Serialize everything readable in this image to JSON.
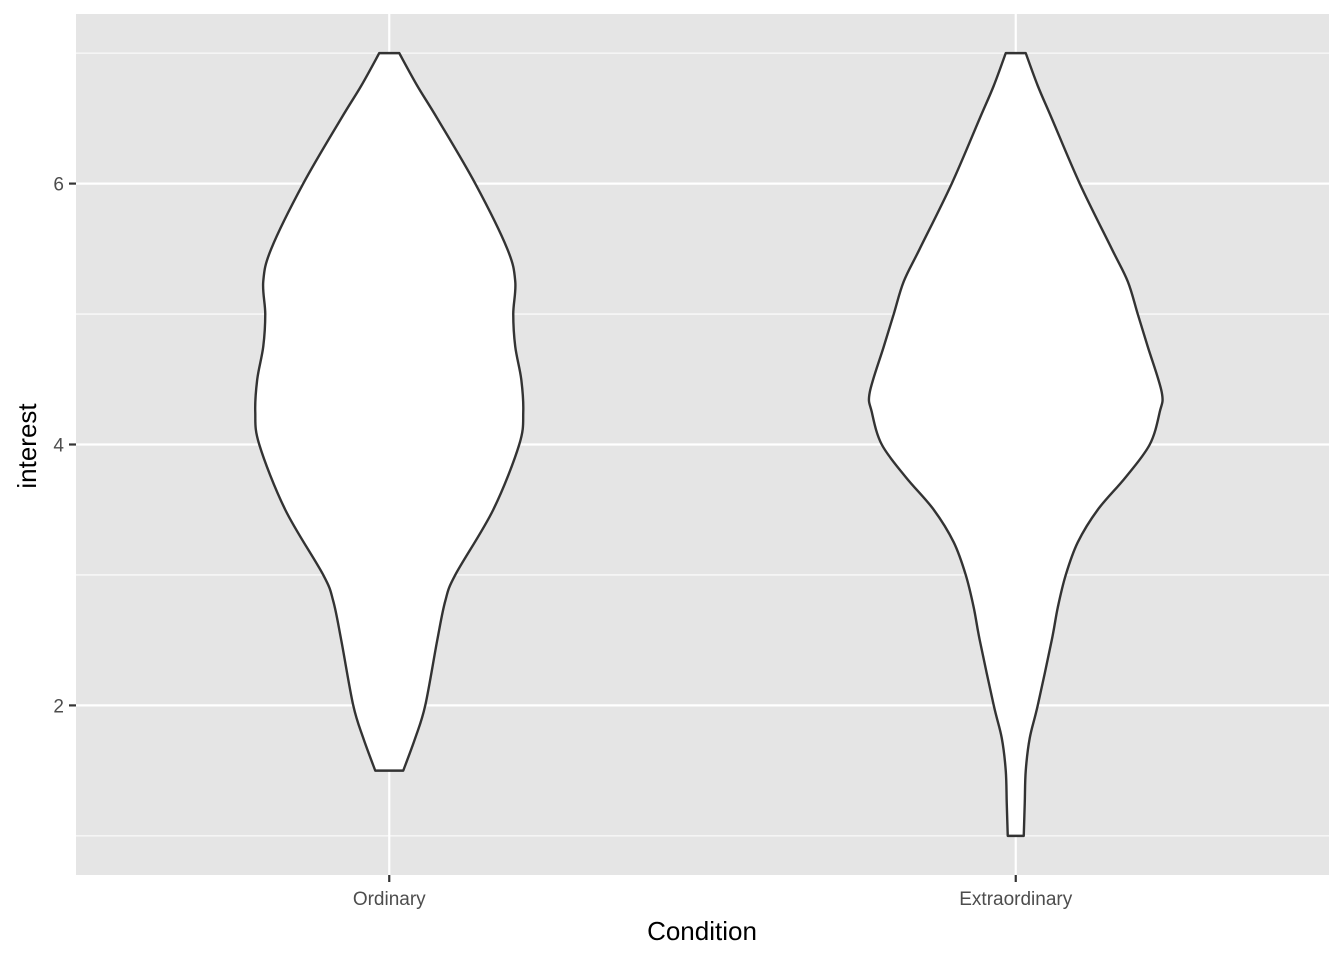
{
  "chart_data": {
    "type": "violin",
    "title": "",
    "xlabel": "Condition",
    "ylabel": "interest",
    "categories": [
      "Ordinary",
      "Extraordinary"
    ],
    "ylim": [
      0.7,
      7.3
    ],
    "y_ticks": [
      2,
      4,
      6
    ],
    "y_tick_labels": [
      "2",
      "4",
      "6"
    ],
    "y_minor_gridlines": [
      1,
      3,
      5,
      7
    ],
    "grid": true,
    "legend": "none",
    "colors": {
      "panel_background": "#e5e5e5",
      "gridline": "#ffffff",
      "violin_fill": "#ffffff",
      "violin_outline": "#333333",
      "tick": "#333333"
    },
    "series": [
      {
        "category": "Ordinary",
        "min": 1.5,
        "max": 7.0,
        "density_profile": [
          [
            1.5,
            0.07
          ],
          [
            1.75,
            0.13
          ],
          [
            2.0,
            0.18
          ],
          [
            2.5,
            0.24
          ],
          [
            2.8,
            0.28
          ],
          [
            3.0,
            0.33
          ],
          [
            3.5,
            0.52
          ],
          [
            4.0,
            0.65
          ],
          [
            4.25,
            0.67
          ],
          [
            4.5,
            0.66
          ],
          [
            4.75,
            0.63
          ],
          [
            5.0,
            0.62
          ],
          [
            5.25,
            0.63
          ],
          [
            5.5,
            0.59
          ],
          [
            6.0,
            0.43
          ],
          [
            6.5,
            0.24
          ],
          [
            6.75,
            0.14
          ],
          [
            7.0,
            0.05
          ]
        ]
      },
      {
        "category": "Extraordinary",
        "min": 1.0,
        "max": 7.0,
        "density_profile": [
          [
            1.0,
            0.04
          ],
          [
            1.25,
            0.045
          ],
          [
            1.5,
            0.05
          ],
          [
            1.75,
            0.07
          ],
          [
            2.0,
            0.11
          ],
          [
            2.5,
            0.18
          ],
          [
            2.75,
            0.21
          ],
          [
            3.0,
            0.25
          ],
          [
            3.25,
            0.31
          ],
          [
            3.5,
            0.41
          ],
          [
            3.75,
            0.55
          ],
          [
            4.0,
            0.67
          ],
          [
            4.25,
            0.72
          ],
          [
            4.4,
            0.73
          ],
          [
            4.75,
            0.66
          ],
          [
            5.0,
            0.61
          ],
          [
            5.25,
            0.56
          ],
          [
            5.5,
            0.48
          ],
          [
            6.0,
            0.32
          ],
          [
            6.5,
            0.18
          ],
          [
            6.75,
            0.11
          ],
          [
            7.0,
            0.05
          ]
        ]
      }
    ]
  }
}
